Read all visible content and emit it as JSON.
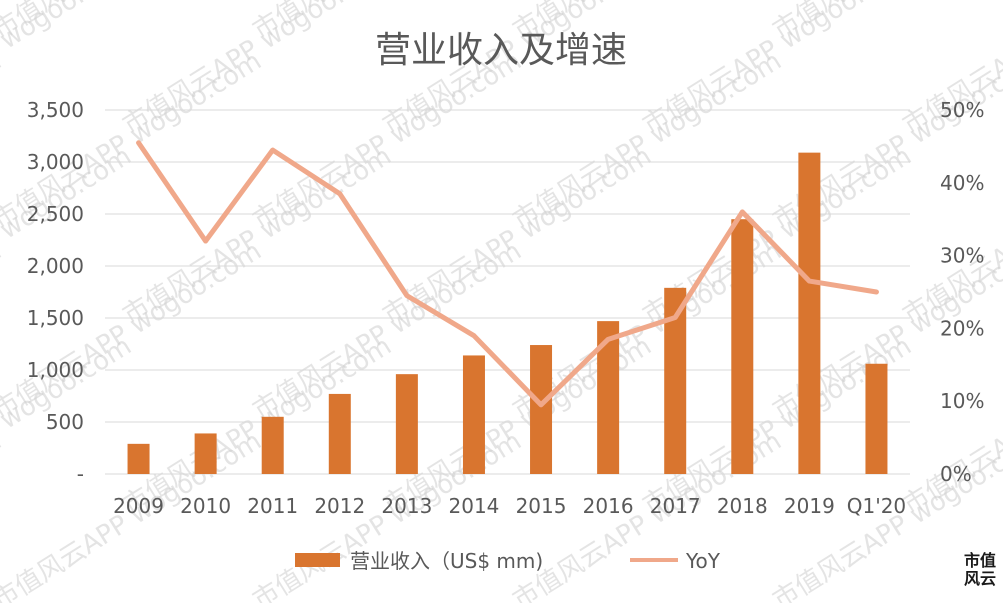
{
  "chart_data": {
    "type": "bar",
    "title": "营业收入及增速",
    "categories": [
      "2009",
      "2010",
      "2011",
      "2012",
      "2013",
      "2014",
      "2015",
      "2016",
      "2017",
      "2018",
      "2019",
      "Q1'20"
    ],
    "series": [
      {
        "name": "营业收入（US$ mm)",
        "type": "bar",
        "axis": "left",
        "color": "#D9752F",
        "values": [
          290,
          390,
          550,
          770,
          960,
          1140,
          1240,
          1470,
          1790,
          2450,
          3090,
          1060
        ]
      },
      {
        "name": "YoY",
        "type": "line",
        "axis": "right",
        "color": "#F0A88A",
        "values": [
          0.455,
          0.32,
          0.445,
          0.385,
          0.245,
          0.19,
          0.095,
          0.185,
          0.215,
          0.36,
          0.265,
          0.25
        ]
      }
    ],
    "y_left": {
      "range": [
        0,
        3500
      ],
      "ticks": [
        "-",
        "500",
        "1,000",
        "1,500",
        "2,000",
        "2,500",
        "3,000",
        "3,500"
      ]
    },
    "y_right": {
      "range": [
        0,
        0.5
      ],
      "ticks": [
        "0%",
        "10%",
        "20%",
        "30%",
        "40%",
        "50%"
      ]
    },
    "grid": true,
    "legend_position": "bottom"
  },
  "watermark": {
    "text": "市值风云APP  wogoo.com",
    "color": "#cfcfcf"
  },
  "logo": {
    "line1": "市值",
    "line2": "风云",
    "color": "#c0392b"
  }
}
